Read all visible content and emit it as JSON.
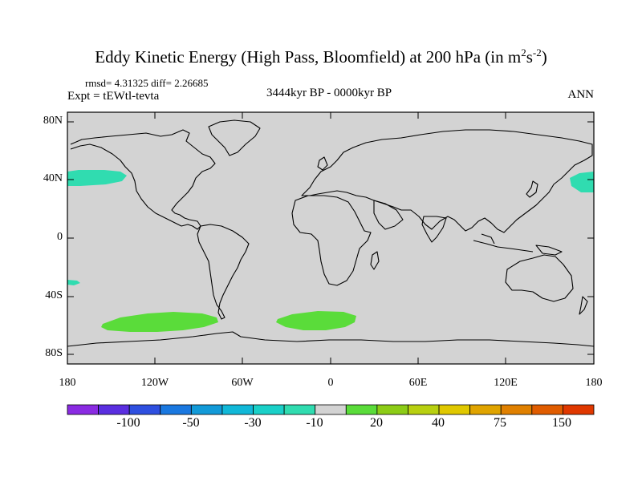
{
  "title": {
    "main": "Eddy Kinetic Energy (High Pass, Bloomfield) at 200 hPa (in m",
    "sup1": "2",
    "mid": "s",
    "sup2": "-2",
    "close": ")"
  },
  "stats": "rmsd= 4.31325 diff= 2.26685",
  "expt": "Expt = tEWtl-tevta",
  "period": "3444kyr BP - 0000kyr BP",
  "season": "ANN",
  "lat_ticks": [
    "80N",
    "40N",
    "0",
    "40S",
    "80S"
  ],
  "lon_ticks": [
    "180",
    "120W",
    "60W",
    "0",
    "60E",
    "120E",
    "180"
  ],
  "colorbar": {
    "colors": [
      "#8a2be2",
      "#5a2ee0",
      "#2e4fe0",
      "#1a78e0",
      "#129ad8",
      "#11b8d8",
      "#1ad0c8",
      "#30dcb0",
      "#d3d3d3",
      "#5adc3a",
      "#8ccc16",
      "#b8d010",
      "#e0c800",
      "#e0a400",
      "#e08000",
      "#e05c00",
      "#e03800"
    ],
    "labels": [
      "-100",
      "-50",
      "-30",
      "-10",
      "20",
      "40",
      "75",
      "150"
    ]
  },
  "colors": {
    "land_ocean": "#d3d3d3",
    "negative_region": "#30dcb0",
    "positive_region": "#5adc3a"
  }
}
